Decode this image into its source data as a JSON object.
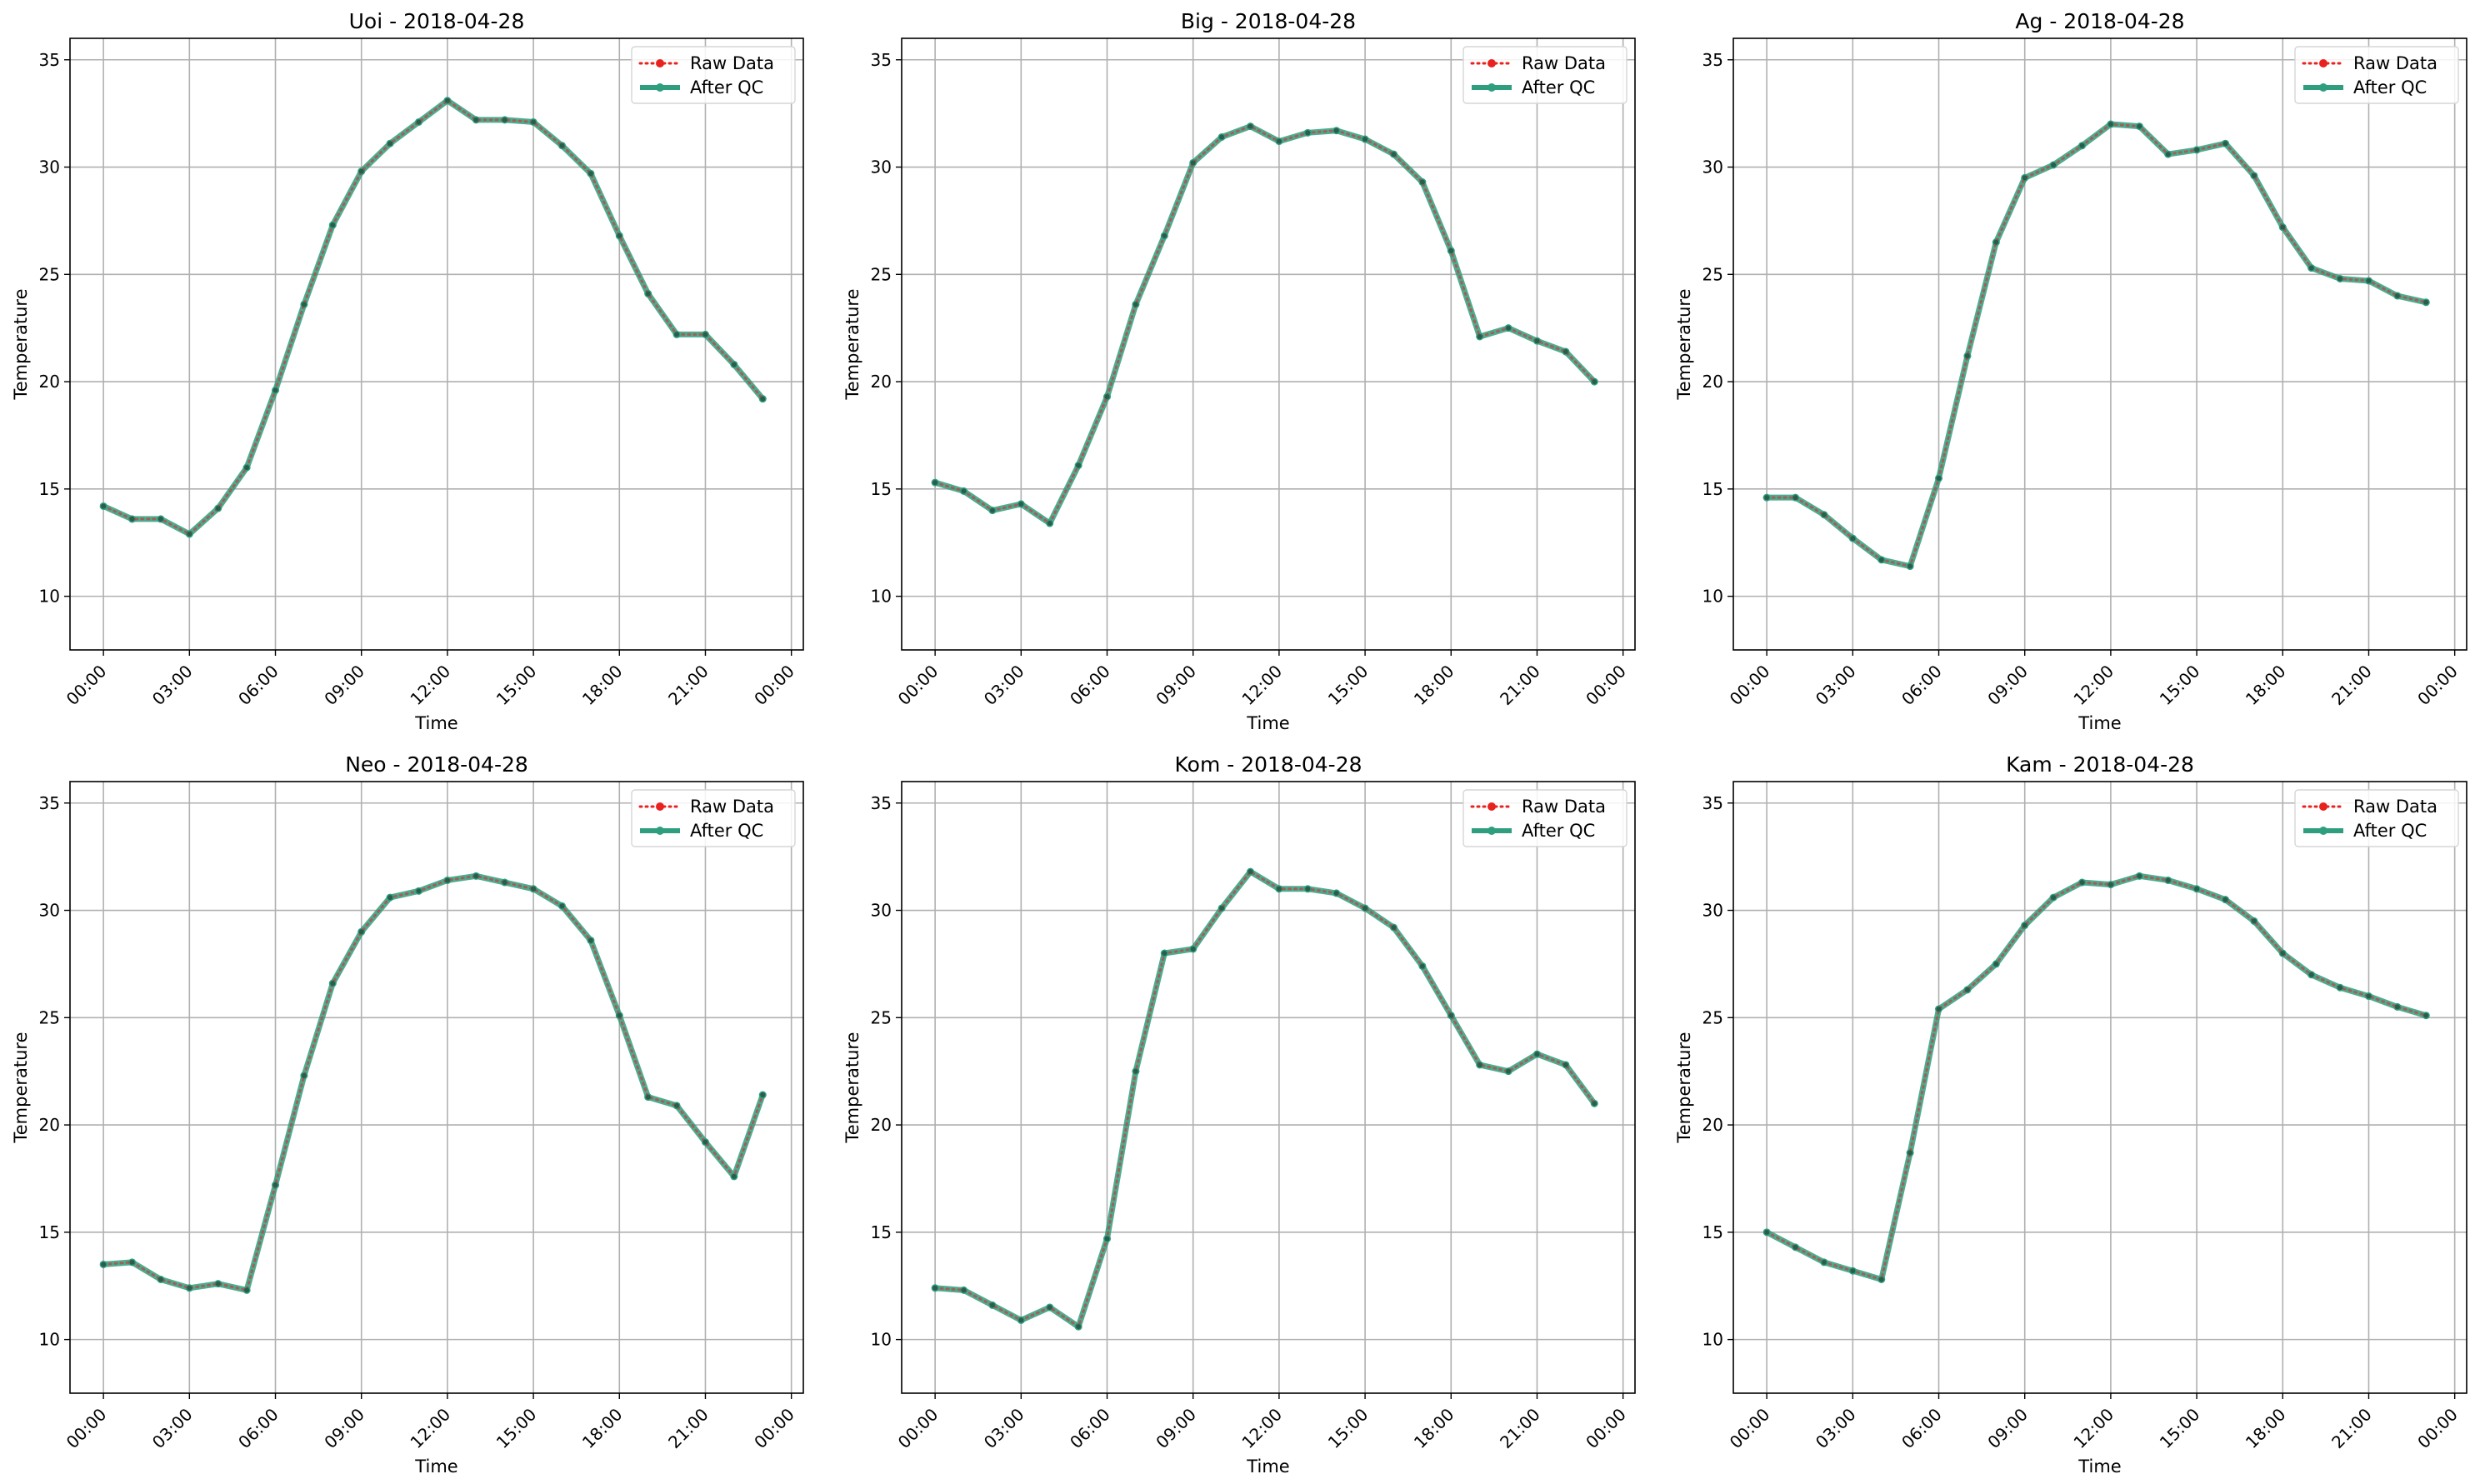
{
  "figure": {
    "xlabel": "Time",
    "ylabel": "Temperature",
    "legend": {
      "raw_label": "Raw Data",
      "qc_label": "After QC",
      "placement": "top-right"
    },
    "colors": {
      "raw": "#e8231f",
      "qc": "#2e9e7f",
      "grid": "#b0b0b0"
    }
  },
  "chart_data": [
    {
      "type": "line",
      "title": "Uoi - 2018-04-28",
      "xlabel": "Time",
      "ylabel": "Temperature",
      "x_hours": [
        0,
        1,
        2,
        3,
        4,
        5,
        6,
        7,
        8,
        9,
        10,
        11,
        12,
        13,
        14,
        15,
        16,
        17,
        18,
        19,
        20,
        21,
        22,
        23
      ],
      "x_ticks": [
        "00:00",
        "03:00",
        "06:00",
        "09:00",
        "12:00",
        "15:00",
        "18:00",
        "21:00",
        "00:00"
      ],
      "y_ticks": [
        "10",
        "15",
        "20",
        "25",
        "30",
        "35"
      ],
      "xlim": [
        "2018-04-27 22:50",
        "2018-04-29 00:25"
      ],
      "ylim": [
        7.5,
        36
      ],
      "grid": true,
      "series": [
        {
          "name": "Raw Data",
          "values": [
            14.2,
            13.6,
            13.6,
            12.9,
            14.1,
            16.0,
            19.6,
            23.6,
            27.3,
            29.8,
            31.1,
            32.1,
            33.1,
            32.2,
            32.2,
            32.1,
            31.0,
            29.7,
            26.8,
            24.1,
            22.2,
            22.2,
            20.8,
            19.2
          ]
        },
        {
          "name": "After QC",
          "values": [
            14.2,
            13.6,
            13.6,
            12.9,
            14.1,
            16.0,
            19.6,
            23.6,
            27.3,
            29.8,
            31.1,
            32.1,
            33.1,
            32.2,
            32.2,
            32.1,
            31.0,
            29.7,
            26.8,
            24.1,
            22.2,
            22.2,
            20.8,
            19.2
          ]
        }
      ]
    },
    {
      "type": "line",
      "title": "Big - 2018-04-28",
      "xlabel": "Time",
      "ylabel": "Temperature",
      "x_hours": [
        0,
        1,
        2,
        3,
        4,
        5,
        6,
        7,
        8,
        9,
        10,
        11,
        12,
        13,
        14,
        15,
        16,
        17,
        18,
        19,
        20,
        21,
        22,
        23
      ],
      "x_ticks": [
        "00:00",
        "03:00",
        "06:00",
        "09:00",
        "12:00",
        "15:00",
        "18:00",
        "21:00",
        "00:00"
      ],
      "y_ticks": [
        "10",
        "15",
        "20",
        "25",
        "30",
        "35"
      ],
      "xlim": [
        "2018-04-27 22:50",
        "2018-04-29 00:25"
      ],
      "ylim": [
        7.5,
        36
      ],
      "grid": true,
      "series": [
        {
          "name": "Raw Data",
          "values": [
            15.3,
            14.9,
            14.0,
            14.3,
            13.4,
            16.1,
            19.3,
            23.6,
            26.8,
            30.2,
            31.4,
            31.9,
            31.2,
            31.6,
            31.7,
            31.3,
            30.6,
            29.3,
            26.1,
            22.1,
            22.5,
            21.9,
            21.4,
            20.0
          ]
        },
        {
          "name": "After QC",
          "values": [
            15.3,
            14.9,
            14.0,
            14.3,
            13.4,
            16.1,
            19.3,
            23.6,
            26.8,
            30.2,
            31.4,
            31.9,
            31.2,
            31.6,
            31.7,
            31.3,
            30.6,
            29.3,
            26.1,
            22.1,
            22.5,
            21.9,
            21.4,
            20.0
          ]
        }
      ]
    },
    {
      "type": "line",
      "title": "Ag - 2018-04-28",
      "xlabel": "Time",
      "ylabel": "Temperature",
      "x_hours": [
        0,
        1,
        2,
        3,
        4,
        5,
        6,
        7,
        8,
        9,
        10,
        11,
        12,
        13,
        14,
        15,
        16,
        17,
        18,
        19,
        20,
        21,
        22,
        23
      ],
      "x_ticks": [
        "00:00",
        "03:00",
        "06:00",
        "09:00",
        "12:00",
        "15:00",
        "18:00",
        "21:00",
        "00:00"
      ],
      "y_ticks": [
        "10",
        "15",
        "20",
        "25",
        "30",
        "35"
      ],
      "xlim": [
        "2018-04-27 22:50",
        "2018-04-29 00:25"
      ],
      "ylim": [
        7.5,
        36
      ],
      "grid": true,
      "series": [
        {
          "name": "Raw Data",
          "values": [
            14.6,
            14.6,
            13.8,
            12.7,
            11.7,
            11.4,
            15.5,
            21.2,
            26.5,
            29.5,
            30.1,
            31.0,
            32.0,
            31.9,
            30.6,
            30.8,
            31.1,
            29.6,
            27.2,
            25.3,
            24.8,
            24.7,
            24.0,
            23.7
          ]
        },
        {
          "name": "After QC",
          "values": [
            14.6,
            14.6,
            13.8,
            12.7,
            11.7,
            11.4,
            15.5,
            21.2,
            26.5,
            29.5,
            30.1,
            31.0,
            32.0,
            31.9,
            30.6,
            30.8,
            31.1,
            29.6,
            27.2,
            25.3,
            24.8,
            24.7,
            24.0,
            23.7
          ]
        }
      ]
    },
    {
      "type": "line",
      "title": "Neo - 2018-04-28",
      "xlabel": "Time",
      "ylabel": "Temperature",
      "x_hours": [
        0,
        1,
        2,
        3,
        4,
        5,
        6,
        7,
        8,
        9,
        10,
        11,
        12,
        13,
        14,
        15,
        16,
        17,
        18,
        19,
        20,
        21,
        22,
        23
      ],
      "x_ticks": [
        "00:00",
        "03:00",
        "06:00",
        "09:00",
        "12:00",
        "15:00",
        "18:00",
        "21:00",
        "00:00"
      ],
      "y_ticks": [
        "10",
        "15",
        "20",
        "25",
        "30",
        "35"
      ],
      "xlim": [
        "2018-04-27 22:50",
        "2018-04-29 00:25"
      ],
      "ylim": [
        7.5,
        36
      ],
      "grid": true,
      "series": [
        {
          "name": "Raw Data",
          "values": [
            13.5,
            13.6,
            12.8,
            12.4,
            12.6,
            12.3,
            17.2,
            22.3,
            26.6,
            29.0,
            30.6,
            30.9,
            31.4,
            31.6,
            31.3,
            31.0,
            30.2,
            28.6,
            25.1,
            21.3,
            20.9,
            19.2,
            17.6,
            21.4
          ]
        },
        {
          "name": "After QC",
          "values": [
            13.5,
            13.6,
            12.8,
            12.4,
            12.6,
            12.3,
            17.2,
            22.3,
            26.6,
            29.0,
            30.6,
            30.9,
            31.4,
            31.6,
            31.3,
            31.0,
            30.2,
            28.6,
            25.1,
            21.3,
            20.9,
            19.2,
            17.6,
            21.4
          ]
        }
      ]
    },
    {
      "type": "line",
      "title": "Kom - 2018-04-28",
      "xlabel": "Time",
      "ylabel": "Temperature",
      "x_hours": [
        0,
        1,
        2,
        3,
        4,
        5,
        6,
        7,
        8,
        9,
        10,
        11,
        12,
        13,
        14,
        15,
        16,
        17,
        18,
        19,
        20,
        21,
        22,
        23
      ],
      "x_ticks": [
        "00:00",
        "03:00",
        "06:00",
        "09:00",
        "12:00",
        "15:00",
        "18:00",
        "21:00",
        "00:00"
      ],
      "y_ticks": [
        "10",
        "15",
        "20",
        "25",
        "30",
        "35"
      ],
      "xlim": [
        "2018-04-27 22:50",
        "2018-04-29 00:25"
      ],
      "ylim": [
        7.5,
        36
      ],
      "grid": true,
      "series": [
        {
          "name": "Raw Data",
          "values": [
            12.4,
            12.3,
            11.6,
            10.9,
            11.5,
            10.6,
            14.7,
            22.5,
            28.0,
            28.2,
            30.1,
            31.8,
            31.0,
            31.0,
            30.8,
            30.1,
            29.2,
            27.4,
            25.1,
            22.8,
            22.5,
            23.3,
            22.8,
            21.0
          ]
        },
        {
          "name": "After QC",
          "values": [
            12.4,
            12.3,
            11.6,
            10.9,
            11.5,
            10.6,
            14.7,
            22.5,
            28.0,
            28.2,
            30.1,
            31.8,
            31.0,
            31.0,
            30.8,
            30.1,
            29.2,
            27.4,
            25.1,
            22.8,
            22.5,
            23.3,
            22.8,
            21.0
          ]
        }
      ]
    },
    {
      "type": "line",
      "title": "Kam - 2018-04-28",
      "xlabel": "Time",
      "ylabel": "Temperature",
      "x_hours": [
        0,
        1,
        2,
        3,
        4,
        5,
        6,
        7,
        8,
        9,
        10,
        11,
        12,
        13,
        14,
        15,
        16,
        17,
        18,
        19,
        20,
        21,
        22,
        23
      ],
      "x_ticks": [
        "00:00",
        "03:00",
        "06:00",
        "09:00",
        "12:00",
        "15:00",
        "18:00",
        "21:00",
        "00:00"
      ],
      "y_ticks": [
        "10",
        "15",
        "20",
        "25",
        "30",
        "35"
      ],
      "xlim": [
        "2018-04-27 22:50",
        "2018-04-29 00:25"
      ],
      "ylim": [
        7.5,
        36
      ],
      "grid": true,
      "series": [
        {
          "name": "Raw Data",
          "values": [
            15.0,
            14.3,
            13.6,
            13.2,
            12.8,
            18.7,
            25.4,
            26.3,
            27.5,
            29.3,
            30.6,
            31.3,
            31.2,
            31.6,
            31.4,
            31.0,
            30.5,
            29.5,
            28.0,
            27.0,
            26.4,
            26.0,
            25.5,
            25.1
          ]
        },
        {
          "name": "After QC",
          "values": [
            15.0,
            14.3,
            13.6,
            13.2,
            12.8,
            18.7,
            25.4,
            26.3,
            27.5,
            29.3,
            30.6,
            31.3,
            31.2,
            31.6,
            31.4,
            31.0,
            30.5,
            29.5,
            28.0,
            27.0,
            26.4,
            26.0,
            25.5,
            25.1
          ]
        }
      ]
    }
  ]
}
